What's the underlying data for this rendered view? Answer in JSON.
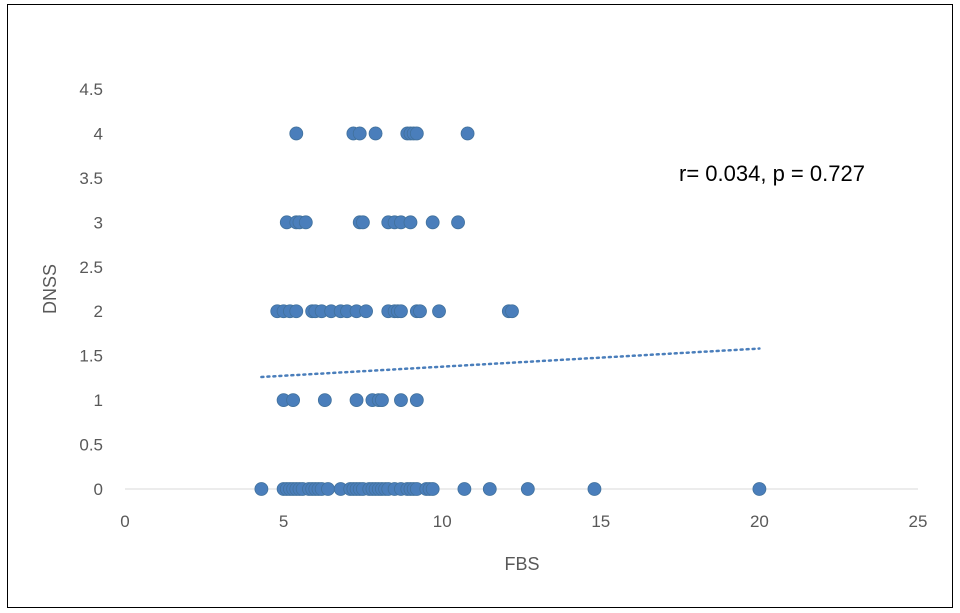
{
  "chart_data": {
    "type": "scatter",
    "xlabel": "FBS",
    "ylabel": "DNSS",
    "xlim": [
      0,
      25
    ],
    "ylim": [
      0,
      4.5
    ],
    "x_ticks": [
      "0",
      "5",
      "10",
      "15",
      "20",
      "25"
    ],
    "y_ticks": [
      "0",
      "0.5",
      "1",
      "1.5",
      "2",
      "2.5",
      "3",
      "3.5",
      "4",
      "4.5"
    ],
    "grid": false,
    "legend": "none",
    "annotation": "r= 0.034, p = 0.727",
    "marker_color": "#4a7ebb",
    "trendline": {
      "style": "dotted-linear",
      "x": [
        4.3,
        20.0
      ],
      "y": [
        1.26,
        1.58
      ]
    },
    "points": [
      {
        "x": 5.4,
        "y": 4
      },
      {
        "x": 7.2,
        "y": 4
      },
      {
        "x": 7.4,
        "y": 4
      },
      {
        "x": 7.9,
        "y": 4
      },
      {
        "x": 8.9,
        "y": 4
      },
      {
        "x": 9.0,
        "y": 4
      },
      {
        "x": 9.1,
        "y": 4
      },
      {
        "x": 9.2,
        "y": 4
      },
      {
        "x": 10.8,
        "y": 4
      },
      {
        "x": 5.1,
        "y": 3
      },
      {
        "x": 5.4,
        "y": 3
      },
      {
        "x": 5.5,
        "y": 3
      },
      {
        "x": 5.7,
        "y": 3
      },
      {
        "x": 7.4,
        "y": 3
      },
      {
        "x": 7.5,
        "y": 3
      },
      {
        "x": 8.3,
        "y": 3
      },
      {
        "x": 8.5,
        "y": 3
      },
      {
        "x": 8.7,
        "y": 3
      },
      {
        "x": 9.0,
        "y": 3
      },
      {
        "x": 9.7,
        "y": 3
      },
      {
        "x": 10.5,
        "y": 3
      },
      {
        "x": 4.8,
        "y": 2
      },
      {
        "x": 5.0,
        "y": 2
      },
      {
        "x": 5.2,
        "y": 2
      },
      {
        "x": 5.4,
        "y": 2
      },
      {
        "x": 5.9,
        "y": 2
      },
      {
        "x": 6.0,
        "y": 2
      },
      {
        "x": 6.2,
        "y": 2
      },
      {
        "x": 6.5,
        "y": 2
      },
      {
        "x": 6.8,
        "y": 2
      },
      {
        "x": 7.0,
        "y": 2
      },
      {
        "x": 7.3,
        "y": 2
      },
      {
        "x": 7.6,
        "y": 2
      },
      {
        "x": 8.3,
        "y": 2
      },
      {
        "x": 8.5,
        "y": 2
      },
      {
        "x": 8.6,
        "y": 2
      },
      {
        "x": 8.7,
        "y": 2
      },
      {
        "x": 9.2,
        "y": 2
      },
      {
        "x": 9.3,
        "y": 2
      },
      {
        "x": 9.9,
        "y": 2
      },
      {
        "x": 12.1,
        "y": 2
      },
      {
        "x": 12.2,
        "y": 2
      },
      {
        "x": 5.0,
        "y": 1
      },
      {
        "x": 5.3,
        "y": 1
      },
      {
        "x": 6.3,
        "y": 1
      },
      {
        "x": 7.3,
        "y": 1
      },
      {
        "x": 7.8,
        "y": 1
      },
      {
        "x": 8.0,
        "y": 1
      },
      {
        "x": 8.1,
        "y": 1
      },
      {
        "x": 8.7,
        "y": 1
      },
      {
        "x": 9.2,
        "y": 1
      },
      {
        "x": 4.3,
        "y": 0
      },
      {
        "x": 5.0,
        "y": 0
      },
      {
        "x": 5.1,
        "y": 0
      },
      {
        "x": 5.2,
        "y": 0
      },
      {
        "x": 5.3,
        "y": 0
      },
      {
        "x": 5.4,
        "y": 0
      },
      {
        "x": 5.5,
        "y": 0
      },
      {
        "x": 5.6,
        "y": 0
      },
      {
        "x": 5.8,
        "y": 0
      },
      {
        "x": 5.9,
        "y": 0
      },
      {
        "x": 6.0,
        "y": 0
      },
      {
        "x": 6.1,
        "y": 0
      },
      {
        "x": 6.2,
        "y": 0
      },
      {
        "x": 6.4,
        "y": 0
      },
      {
        "x": 6.8,
        "y": 0
      },
      {
        "x": 7.1,
        "y": 0
      },
      {
        "x": 7.2,
        "y": 0
      },
      {
        "x": 7.3,
        "y": 0
      },
      {
        "x": 7.4,
        "y": 0
      },
      {
        "x": 7.5,
        "y": 0
      },
      {
        "x": 7.7,
        "y": 0
      },
      {
        "x": 7.8,
        "y": 0
      },
      {
        "x": 7.9,
        "y": 0
      },
      {
        "x": 8.0,
        "y": 0
      },
      {
        "x": 8.1,
        "y": 0
      },
      {
        "x": 8.2,
        "y": 0
      },
      {
        "x": 8.3,
        "y": 0
      },
      {
        "x": 8.5,
        "y": 0
      },
      {
        "x": 8.7,
        "y": 0
      },
      {
        "x": 8.9,
        "y": 0
      },
      {
        "x": 9.0,
        "y": 0
      },
      {
        "x": 9.1,
        "y": 0
      },
      {
        "x": 9.2,
        "y": 0
      },
      {
        "x": 9.5,
        "y": 0
      },
      {
        "x": 9.6,
        "y": 0
      },
      {
        "x": 9.7,
        "y": 0
      },
      {
        "x": 10.7,
        "y": 0
      },
      {
        "x": 11.5,
        "y": 0
      },
      {
        "x": 12.7,
        "y": 0
      },
      {
        "x": 14.8,
        "y": 0
      },
      {
        "x": 20.0,
        "y": 0
      }
    ]
  }
}
